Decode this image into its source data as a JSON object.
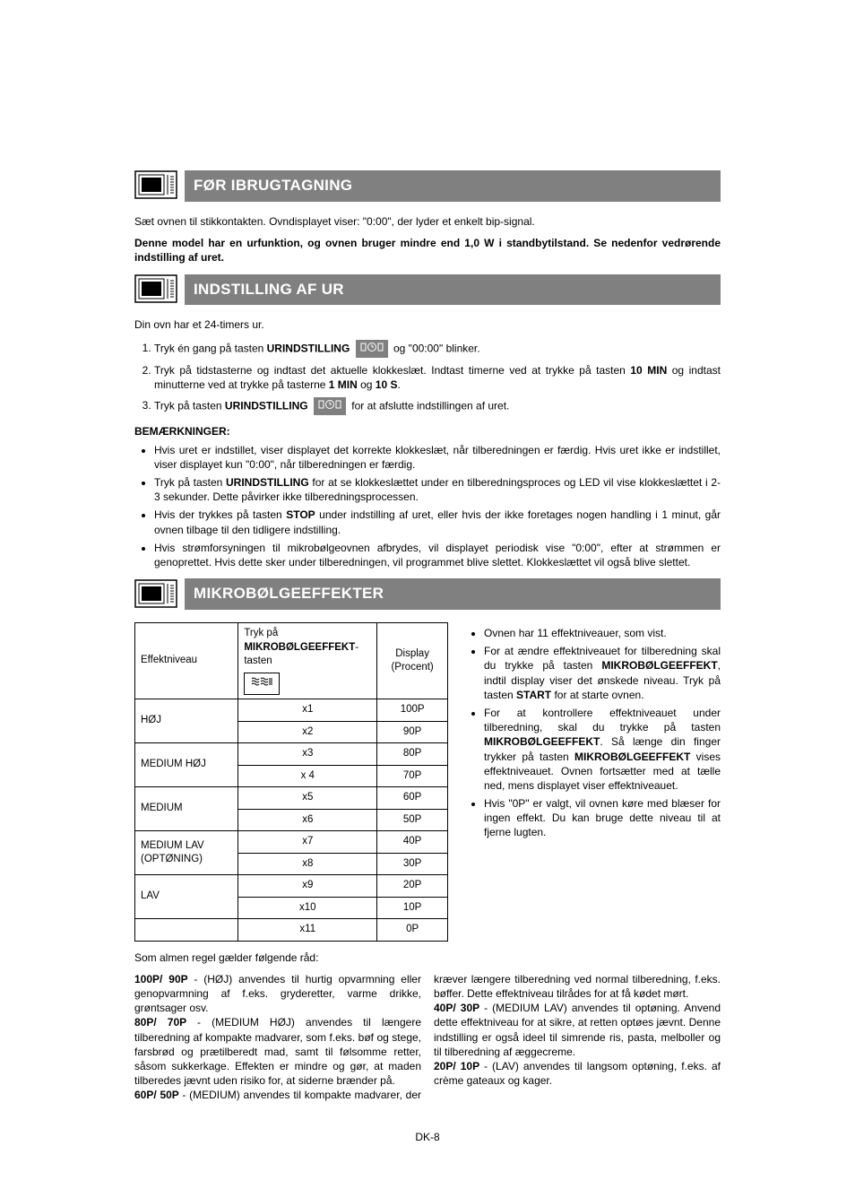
{
  "sections": {
    "before_use": {
      "title": "FØR IBRUGTAGNING"
    },
    "clock": {
      "title": "INDSTILLING AF UR"
    },
    "power": {
      "title": "MIKROBØLGEEFFEKTER"
    }
  },
  "before_use": {
    "line1": "Sæt ovnen til stikkontakten. Ovndisplayet viser:  \"0:00\", der lyder et enkelt bip-signal.",
    "line2": "Denne model har en urfunktion, og ovnen bruger mindre end 1,0 W i standbytilstand. Se nedenfor vedrørende indstilling af uret."
  },
  "clock": {
    "intro": "Din ovn har et 24-timers ur.",
    "step1_a": "Tryk én gang på tasten ",
    "step1_b": "URINDSTILLING",
    "step1_c": " og \"00:00\" blinker.",
    "step2_a": "Tryk på tidstasterne og indtast det aktuelle klokkeslæt. Indtast timerne ved at trykke på tasten ",
    "step2_b": "10 MIN",
    "step2_c": " og indtast minutterne ved at trykke på tasterne ",
    "step2_d": "1 MIN",
    "step2_e": " og ",
    "step2_f": "10 S",
    "step2_g": ".",
    "step3_a": "Tryk på tasten ",
    "step3_b": "URINDSTILLING",
    "step3_c": " for at afslutte indstillingen af uret.",
    "notes_head": "BEMÆRKNINGER:",
    "note1": "Hvis uret er indstillet, viser displayet det korrekte klokkeslæt, når tilberedningen er færdig. Hvis uret ikke er indstillet, viser displayet kun \"0:00\", når tilberedningen er færdig.",
    "note2_a": "Tryk på tasten ",
    "note2_b": "URINDSTILLING",
    "note2_c": " for at se klokkeslættet under en tilberedningsproces og LED vil vise klokkeslættet i 2-3 sekunder. Dette påvirker ikke tilberedningsprocessen.",
    "note3_a": "Hvis der trykkes på tasten ",
    "note3_b": "STOP",
    "note3_c": " under indstilling af uret, eller hvis der ikke foretages nogen handling i 1 minut, går ovnen tilbage til den tidligere indstilling.",
    "note4": "Hvis strømforsyningen til mikrobølgeovnen afbrydes, vil displayet periodisk vise \"0:00\", efter at strømmen er genoprettet. Hvis dette sker under tilberedningen, vil programmet blive slettet. Klokkeslættet vil også blive slettet."
  },
  "power_table": {
    "h_level": "Effektniveau",
    "h_press_a": "Tryk på",
    "h_press_b": "MIKROBØLGEEFFEKT",
    "h_press_c": "-tasten",
    "h_display": "Display (Procent)",
    "rows": [
      {
        "level": "HØJ",
        "span": 2,
        "press": "x1",
        "disp": "100P"
      },
      {
        "press": "x2",
        "disp": "90P"
      },
      {
        "level": "MEDIUM HØJ",
        "span": 2,
        "press": "x3",
        "disp": "80P"
      },
      {
        "press": "x 4",
        "disp": "70P"
      },
      {
        "level": "MEDIUM",
        "span": 2,
        "press": "x5",
        "disp": "60P"
      },
      {
        "press": "x6",
        "disp": "50P"
      },
      {
        "level": "MEDIUM LAV (OPTØNING)",
        "span": 2,
        "press": "x7",
        "disp": "40P"
      },
      {
        "press": "x8",
        "disp": "30P"
      },
      {
        "level": "LAV",
        "span": 2,
        "press": "x9",
        "disp": "20P"
      },
      {
        "press": "x10",
        "disp": "10P"
      },
      {
        "level": "",
        "span": 1,
        "press": "x11",
        "disp": "0P"
      }
    ]
  },
  "power_notes": {
    "n1": "Ovnen har 11 effektniveauer, som vist.",
    "n2_a": "For at ændre effektniveauet for tilberedning skal du trykke på tasten ",
    "n2_b": "MIKROBØLGEEFFEKT",
    "n2_c": ", indtil display viser det ønskede niveau. Tryk på tasten ",
    "n2_d": "START",
    "n2_e": " for at starte ovnen.",
    "n3_a": "For at kontrollere effektniveauet under tilberedning, skal du trykke på tasten ",
    "n3_b": "MIKROBØLGEEFFEKT",
    "n3_c": ". Så længe din finger trykker på tasten ",
    "n3_d": "MIKROBØLGEEFFEKT",
    "n3_e": " vises effektniveauet. Ovnen fortsætter med at tælle ned, mens displayet viser effektniveauet.",
    "n4": "Hvis \"0P\" er valgt, vil ovnen køre med blæser for ingen effekt. Du kan bruge dette niveau til at fjerne lugten."
  },
  "advice": {
    "intro": "Som almen regel gælder følgende råd:",
    "p1_h": "100P/ 90P ",
    "p1_t": "- (HØJ) anvendes til hurtig opvarmning eller genopvarmning af f.eks. gryderetter, varme drikke, grøntsager osv.",
    "p2_h": "80P/ 70P ",
    "p2_t": "- (MEDIUM HØJ) anvendes til længere tilberedning af kompakte madvarer, som f.eks. bøf og stege, farsbrød og prætilberedt mad, samt til følsomme retter, såsom sukkerkage. Effekten er mindre og gør, at maden tilberedes jævnt uden risiko for, at siderne brænder på.",
    "p3_h": "60P/ 50P ",
    "p3_t": "- (MEDIUM) anvendes til kompakte madvarer, der kræver længere tilberedning ved normal tilberedning, f.eks. bøffer. Dette effektniveau tilrådes for at få kødet mørt.",
    "p4_h": "40P/ 30P ",
    "p4_t": "- (MEDIUM LAV) anvendes til optøning. Anvend dette effektniveau for at sikre, at retten optøes jævnt. Denne indstilling er også ideel til simrende ris, pasta, melboller og til tilberedning af æggecreme.",
    "p5_h": "20P/ 10P ",
    "p5_t": "- (LAV) anvendes til langsom optøning, f.eks. af crème gateaux og kager."
  },
  "page_num": "DK-8"
}
